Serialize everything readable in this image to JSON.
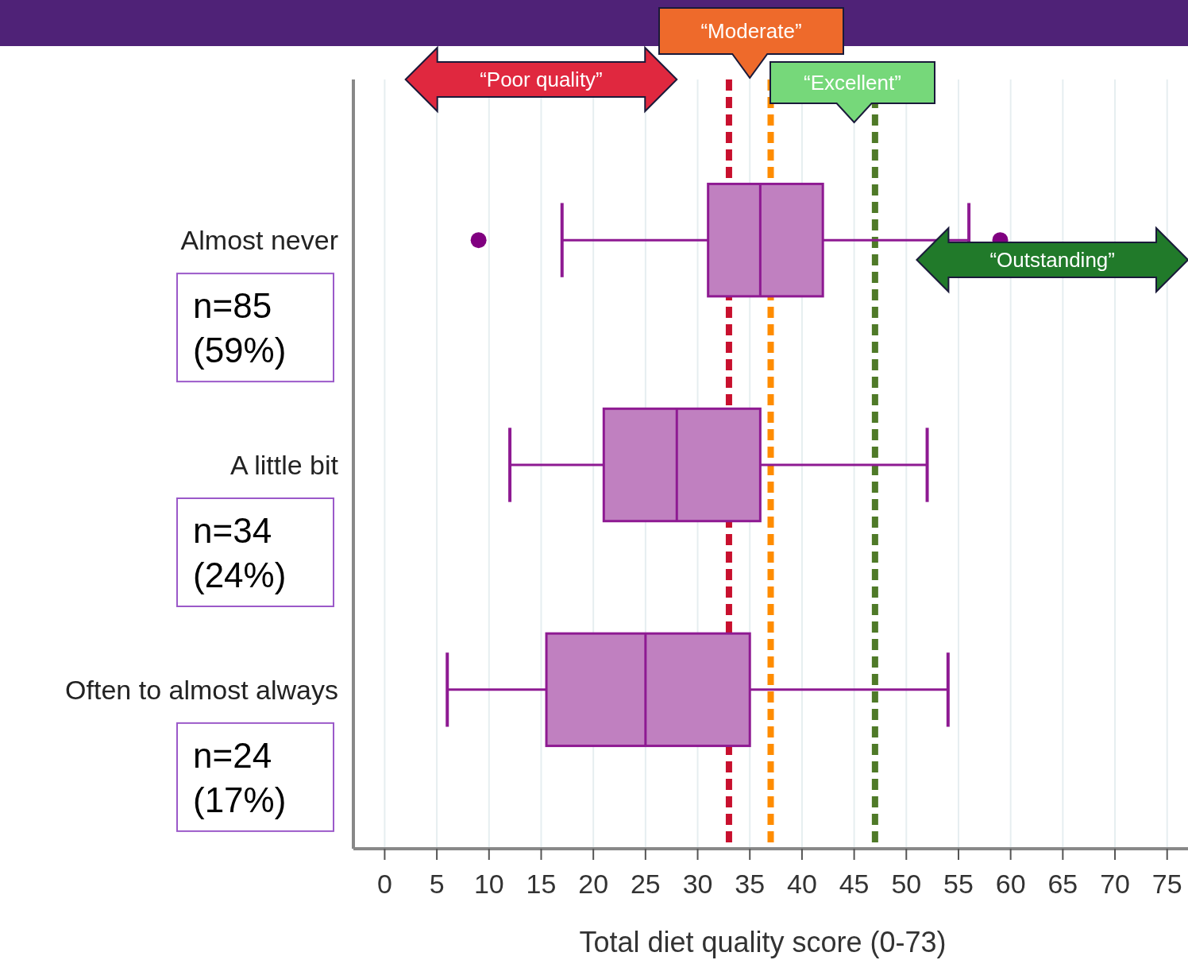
{
  "chart_data": {
    "type": "box",
    "orientation": "horizontal",
    "xlabel": "Total diet quality score (0-73)",
    "categories": [
      "Almost never",
      "A little bit",
      "Often to almost always"
    ],
    "series": [
      {
        "color": "#c080c0",
        "boxes": [
          {
            "low": 17,
            "q1": 31,
            "median": 36,
            "q3": 42,
            "high": 56,
            "outliers": [
              9,
              59
            ]
          },
          {
            "low": 12,
            "q1": 21,
            "median": 28,
            "q3": 36,
            "high": 52
          },
          {
            "low": 6,
            "q1": 15.5,
            "median": 25,
            "q3": 35,
            "high": 54
          }
        ]
      }
    ],
    "xlim": [
      -3,
      77
    ],
    "xticks": [
      0,
      5,
      10,
      15,
      20,
      25,
      30,
      35,
      40,
      45,
      50,
      55,
      60,
      65,
      70,
      75
    ],
    "grid": "x",
    "ref_lines": [
      {
        "axis": "x",
        "value": 33,
        "color": "#c8102e",
        "line_style": "dashed"
      },
      {
        "axis": "x",
        "value": 37,
        "color": "#ff8c00",
        "line_style": "dashed"
      },
      {
        "axis": "x",
        "value": 47,
        "color": "#4f7a28",
        "line_style": "dashed"
      }
    ],
    "annotations": [
      "n=85 (59%)",
      "n=34 (24%)",
      "n=24 (17%)",
      "“Poor quality”",
      "“Moderate”",
      "“Excellent”",
      "“Outstanding”"
    ]
  }
}
